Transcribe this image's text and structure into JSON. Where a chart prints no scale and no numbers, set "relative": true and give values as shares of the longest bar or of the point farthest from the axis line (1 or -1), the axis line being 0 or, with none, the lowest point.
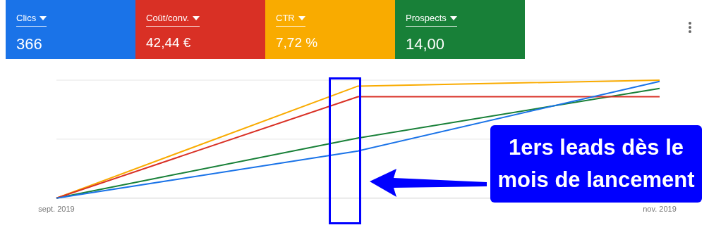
{
  "chart_data": {
    "type": "line",
    "relative": true,
    "categories": [
      "sept. 2019",
      null,
      "nov. 2019"
    ],
    "legend": "top",
    "ref_lines": [
      {
        "axis": "y",
        "value": 0.5,
        "color": "#e6e6e6"
      },
      {
        "axis": "y",
        "value": 1,
        "color": "#e6e6e6"
      }
    ],
    "marker": "none",
    "series": [
      {
        "name": "Clics",
        "color": "#1a73e8",
        "values": [
          0,
          0.4,
          0.99
        ]
      },
      {
        "name": "Coût/conv.",
        "color": "#d93025",
        "values": [
          0,
          0.86,
          0.86
        ]
      },
      {
        "name": "CTR",
        "color": "#f9ab00",
        "values": [
          0,
          0.95,
          1
        ]
      },
      {
        "name": "Prospects",
        "color": "#188038",
        "values": [
          0,
          0.51,
          0.93
        ]
      }
    ],
    "annotations": [
      "366",
      "42,44 €",
      "7,72 %",
      "14,00",
      "1ers leads dès le mois de lancement"
    ]
  }
}
